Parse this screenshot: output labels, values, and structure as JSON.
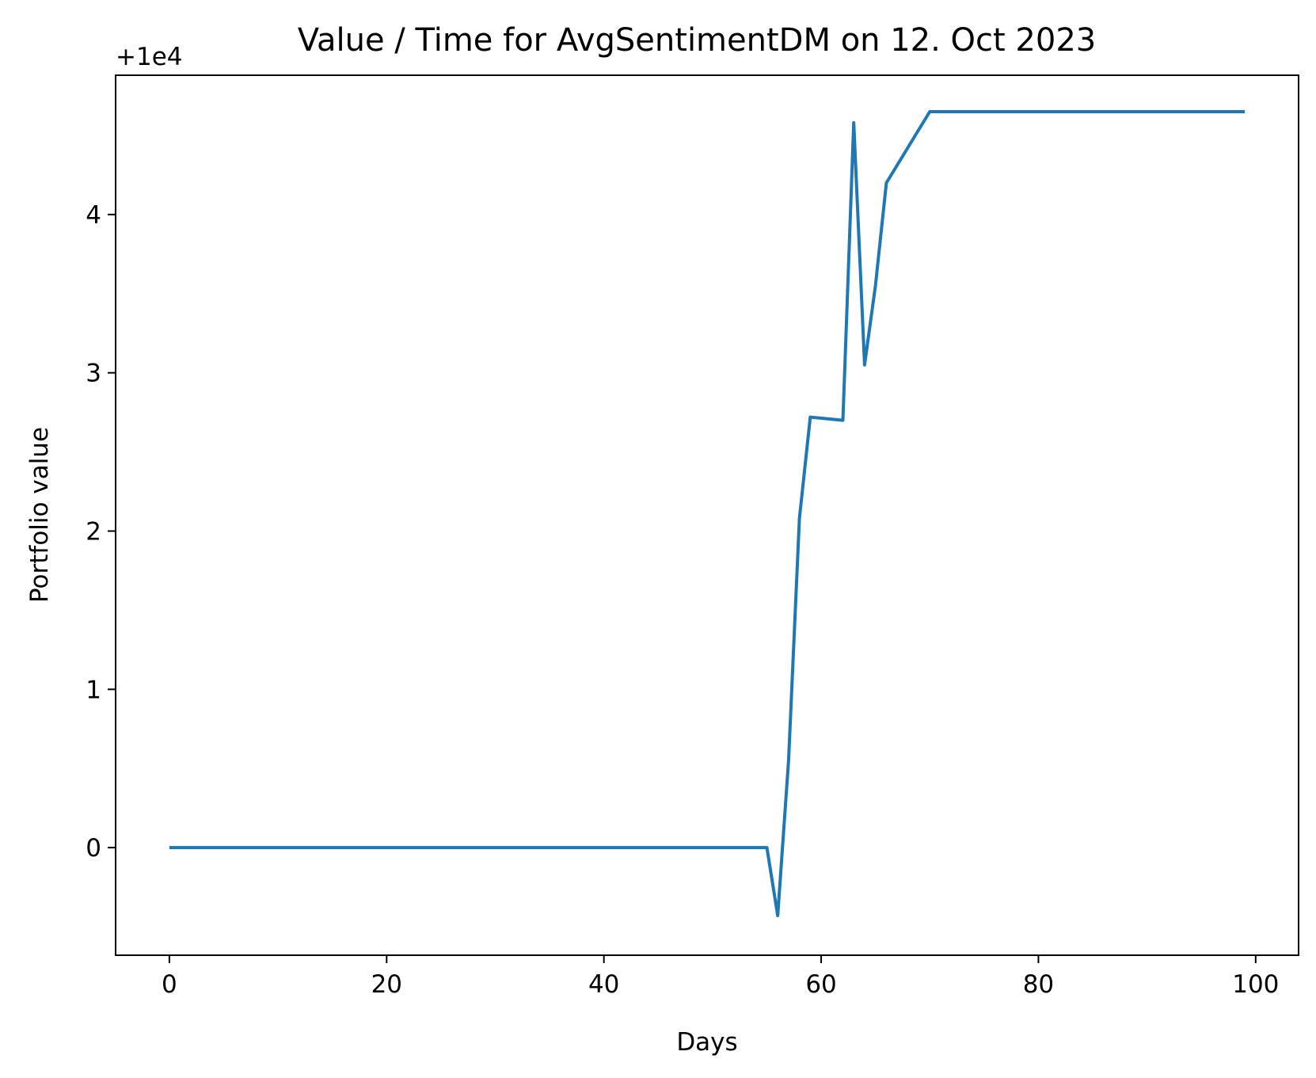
{
  "chart_data": {
    "type": "line",
    "title": "Value / Time for AvgSentimentDM on 12. Oct 2023",
    "xlabel": "Days",
    "ylabel": "Portfolio value",
    "y_offset_label": "+1e4",
    "xlim": [
      -4.95,
      103.95
    ],
    "ylim": [
      -0.68,
      4.88
    ],
    "xticks": [
      0,
      20,
      40,
      60,
      80,
      100
    ],
    "yticks": [
      0,
      1,
      2,
      3,
      4
    ],
    "grid": false,
    "legend": "none",
    "series": [
      {
        "color": "#1f77b4",
        "x": [
          0,
          55,
          56,
          57,
          58,
          59,
          62,
          63,
          64,
          65,
          66,
          70,
          99
        ],
        "y": [
          0,
          0,
          -0.43,
          0.55,
          2.08,
          2.72,
          2.7,
          4.58,
          3.05,
          3.55,
          4.2,
          4.65,
          4.65
        ]
      }
    ]
  }
}
